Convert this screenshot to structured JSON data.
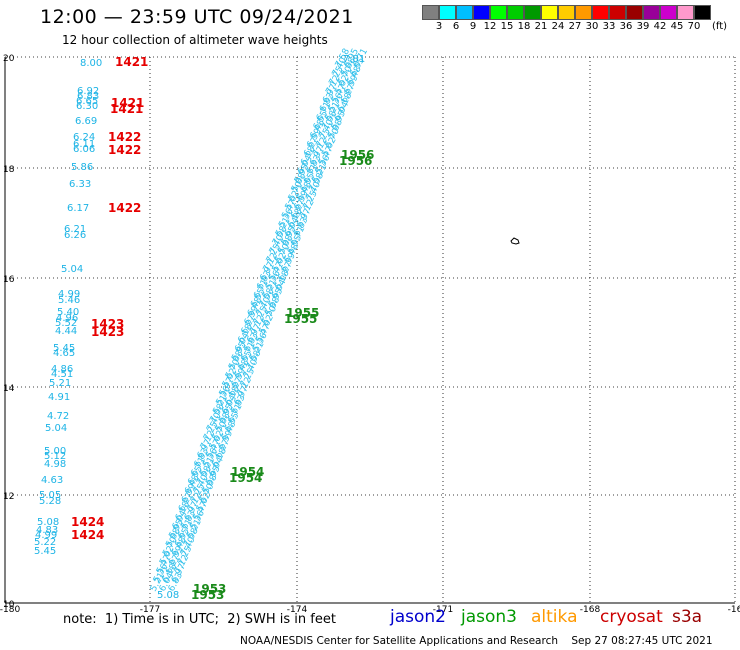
{
  "header": {
    "title": "12:00 — 23:59 UTC 09/24/2021",
    "subtitle": "12 hour collection of altimeter wave heights"
  },
  "colorbar": {
    "colors": [
      "#808080",
      "#00ffff",
      "#00bfff",
      "#0000ff",
      "#00ff00",
      "#00cc00",
      "#009900",
      "#ffff00",
      "#ffcc00",
      "#ff9900",
      "#ff0000",
      "#cc0000",
      "#990000",
      "#990099",
      "#cc00cc",
      "#ff99cc",
      "#000000"
    ],
    "labels": [
      "3",
      "6",
      "9",
      "12",
      "15",
      "18",
      "21",
      "24",
      "27",
      "30",
      "33",
      "36",
      "39",
      "42",
      "45",
      "70"
    ],
    "unit": "(ft)"
  },
  "axes": {
    "lon_ticks": [
      "-180",
      "-177",
      "-174",
      "-171",
      "-168",
      "-16"
    ],
    "lat_ticks": [
      "20",
      "18",
      "16",
      "14",
      "12",
      "10"
    ]
  },
  "left_track": {
    "heights": [
      "8.00",
      "6.92",
      "6.83",
      "6.65",
      "6.30",
      "6.69",
      "6.24",
      "6.11",
      "6.06",
      "5.86",
      "6.33",
      "6.17",
      "6.21",
      "6.26",
      "5.04",
      "4.99",
      "5.46",
      "5.40",
      "4.96",
      "5.52",
      "4.44",
      "5.45",
      "4.65",
      "4.86",
      "4.51",
      "5.21",
      "4.91",
      "4.72",
      "5.04",
      "5.00",
      "5.12",
      "4.98",
      "4.63",
      "5.05",
      "5.28",
      "5.08",
      "4.83",
      "4.99",
      "5.22",
      "5.45"
    ],
    "times": [
      "1421",
      "1421",
      "1421",
      "1422",
      "1422",
      "1422",
      "1423",
      "1423",
      "1424",
      "1424"
    ]
  },
  "diagonal_track": {
    "top_label": "7.81",
    "bottom_label": "5.08",
    "times": [
      "1956",
      "1956",
      "1955",
      "1955",
      "1954",
      "1954",
      "1953",
      "1953"
    ]
  },
  "map_symbol": "symbol",
  "footer": {
    "note": "note:  1) Time is in UTC;  2) SWH is in feet",
    "satellites": [
      {
        "name": "jason2",
        "color": "#0000cc"
      },
      {
        "name": "jason3",
        "color": "#009900"
      },
      {
        "name": "altika",
        "color": "#ff9900"
      },
      {
        "name": "cryosat",
        "color": "#cc0000"
      },
      {
        "name": "s3a",
        "color": "#990000"
      }
    ],
    "credit": "NOAA/NESDIS Center for Satellite Applications and Research    Sep 27 08:27:45 UTC 2021"
  }
}
